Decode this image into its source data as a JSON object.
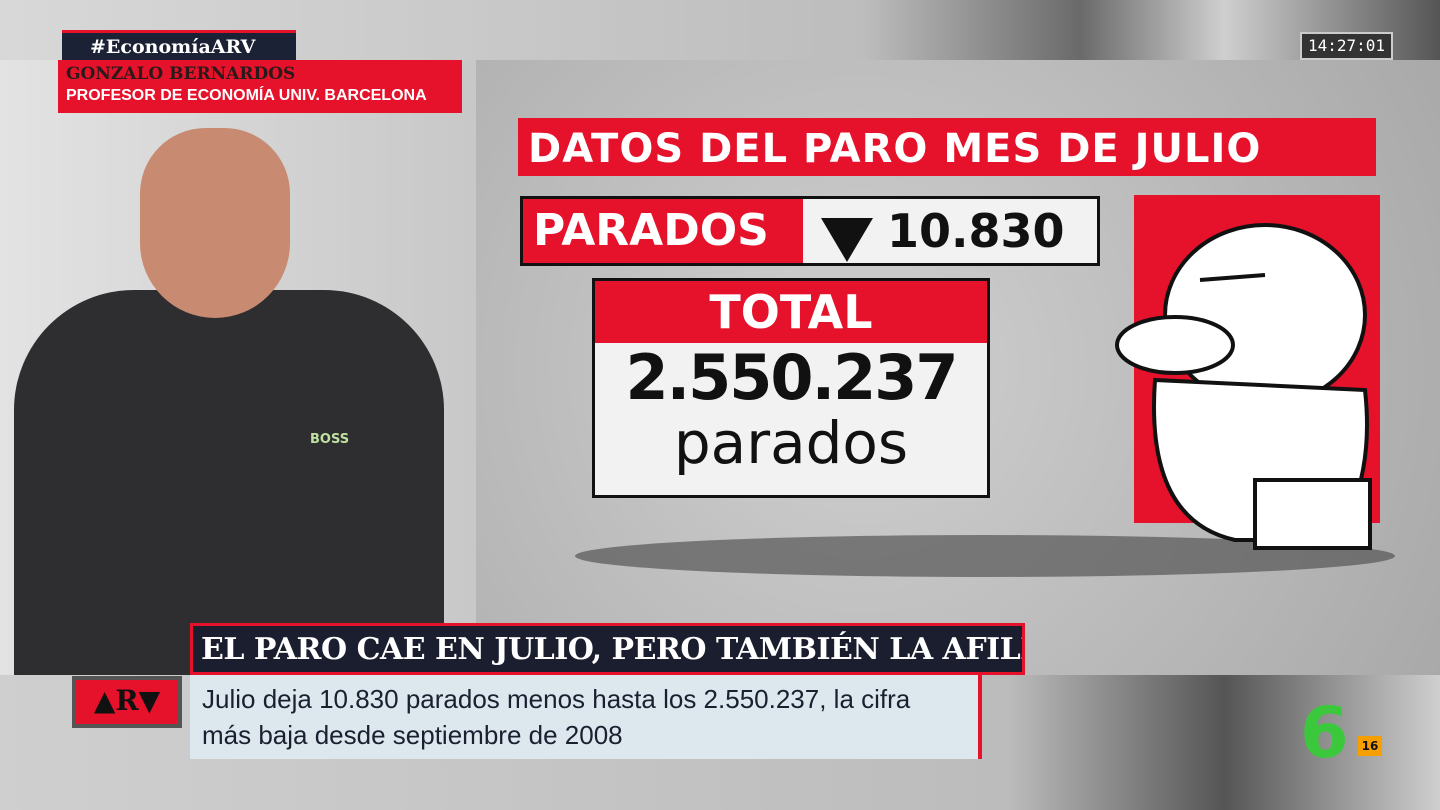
{
  "overlay": {
    "hashtag": "#EconomíaARV",
    "guest_name": "GONZALO BERNARDOS",
    "guest_role": "PROFESOR DE ECONOMÍA UNIV. BARCELONA",
    "clock": "14:27:01"
  },
  "graphic": {
    "title": "DATOS DEL PARO MES DE JULIO",
    "parados_label": "PARADOS",
    "parados_change": "10.830",
    "change_direction": "down",
    "total_label": "TOTAL",
    "total_value": "2.550.237",
    "total_unit": "parados"
  },
  "shirt_logo": "BOSS",
  "lower_third": {
    "program_logo": "▲R▼",
    "headline": "EL PARO CAE EN JULIO, PERO TAMBIÉN LA AFILIACIÓN",
    "subtitle": "Julio deja 10.830 parados menos hasta los 2.550.237, la cifra más baja desde septiembre de 2008"
  },
  "channel": {
    "logo": "6",
    "age_rating": "16",
    "color": "#3cc83c"
  },
  "colors": {
    "accent_red": "#e6112a",
    "navy": "#1a1e2e"
  }
}
